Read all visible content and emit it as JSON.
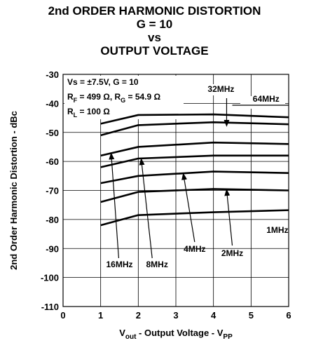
{
  "chart_data": {
    "type": "line",
    "title_lines": [
      "2nd ORDER HARMONIC DISTORTION",
      "G = 10",
      "vs",
      "OUTPUT VOLTAGE"
    ],
    "xlabel": {
      "main": "V",
      "sub": "out",
      "rest": " - Output Voltage - V",
      "sub2": "PP"
    },
    "ylabel": "2nd Order Harmonic Distortion - dBc",
    "xlim": [
      0,
      6
    ],
    "ylim": [
      -110,
      -30
    ],
    "xticks": [
      0,
      1,
      2,
      3,
      4,
      5,
      6
    ],
    "yticks": [
      -30,
      -40,
      -50,
      -60,
      -70,
      -80,
      -90,
      -100,
      -110
    ],
    "grid": true,
    "conditions": [
      [
        {
          "t": "Vs = ±7.5V, G = 10"
        }
      ],
      [
        {
          "t": "R"
        },
        {
          "t": "F",
          "sub": true
        },
        {
          "t": " = 499 Ω, R"
        },
        {
          "t": "G",
          "sub": true
        },
        {
          "t": " = 54.9 Ω"
        }
      ],
      [
        {
          "t": "R"
        },
        {
          "t": "L",
          "sub": true
        },
        {
          "t": " = 100 Ω"
        }
      ]
    ],
    "x": [
      1,
      2,
      4,
      6
    ],
    "series": [
      {
        "name": "64MHz",
        "values": [
          -47,
          -44,
          -43.8,
          -44.8
        ]
      },
      {
        "name": "32MHz",
        "values": [
          -51,
          -47.5,
          -46.5,
          -47.2
        ]
      },
      {
        "name": "16MHz",
        "values": [
          -58,
          -55,
          -53.5,
          -54
        ]
      },
      {
        "name": "8MHz",
        "values": [
          -62,
          -59,
          -58,
          -58
        ]
      },
      {
        "name": "4MHz",
        "values": [
          -67.5,
          -65,
          -63.5,
          -64
        ]
      },
      {
        "name": "2MHz",
        "values": [
          -74,
          -70.5,
          -69.5,
          -70
        ]
      },
      {
        "name": "1MHz",
        "values": [
          -82,
          -78.5,
          -77.5,
          -76.8
        ]
      }
    ]
  }
}
